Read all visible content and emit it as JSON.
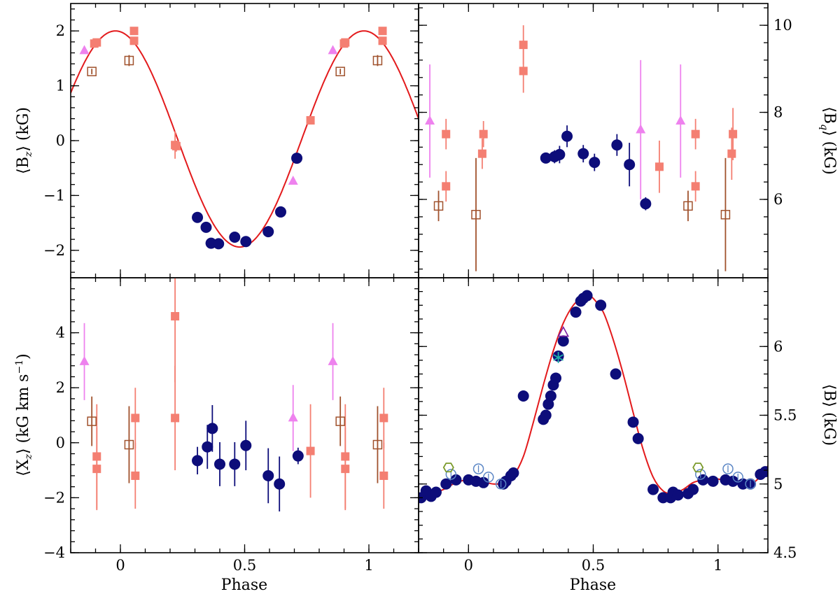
{
  "colors": {
    "fit_line": "#e31a1c",
    "filled_circle": "#0d0d7a",
    "filled_square": "#f47f72",
    "open_square": "#a0522d",
    "triangle": "#ee82ee",
    "open_circle": "#5b86c5",
    "hexagon": "#7a9a2a",
    "open_triangle": "#7b1fa2",
    "star": "#20b2aa"
  },
  "chart_data": [
    {
      "type": "scatter",
      "panel": "top-left",
      "xlabel": "",
      "ylabel": "⟨B_z⟩ (kG)",
      "ylabel_main": "⟨B",
      "ylabel_sub": "z",
      "ylabel_tail": "⟩ (kG)",
      "xlim": [
        -0.2,
        1.2
      ],
      "ylim": [
        -2.5,
        2.5
      ],
      "xticks": [
        0,
        0.5,
        1
      ],
      "xtick_labels": [
        "",
        "",
        ""
      ],
      "yticks": [
        -2,
        -1,
        0,
        1,
        2
      ],
      "ytick_labels": [
        "−2",
        "−1",
        "0",
        "1",
        "2"
      ],
      "fit": {
        "kind": "sine",
        "mean": 0.03,
        "amp": 1.97,
        "phase_max": -0.02
      },
      "series": [
        {
          "name": "filled circles",
          "marker": "filled_circle",
          "points": [
            [
              0.31,
              -1.4,
              0.05
            ],
            [
              0.345,
              -1.58,
              0.05
            ],
            [
              0.365,
              -1.87,
              0.05
            ],
            [
              0.395,
              -1.88,
              0.05
            ],
            [
              0.46,
              -1.76,
              0.05
            ],
            [
              0.505,
              -1.84,
              0.05
            ],
            [
              0.595,
              -1.66,
              0.1
            ],
            [
              0.645,
              -1.3,
              0.05
            ],
            [
              0.71,
              -0.32,
              0.05
            ]
          ]
        },
        {
          "name": "filled squares",
          "marker": "filled_square",
          "points": [
            [
              -0.105,
              1.77,
              0.05
            ],
            [
              -0.095,
              1.79,
              0.05
            ],
            [
              0.055,
              2.0,
              0.05
            ],
            [
              0.055,
              1.82,
              0.05
            ],
            [
              0.22,
              -0.08,
              0.25
            ],
            [
              0.225,
              -0.1,
              0.1
            ],
            [
              0.765,
              0.37,
              0.05
            ],
            [
              0.9,
              1.77,
              0.05
            ],
            [
              0.905,
              1.79,
              0.05
            ],
            [
              1.055,
              2.0,
              0.05
            ],
            [
              1.055,
              1.82,
              0.05
            ]
          ]
        },
        {
          "name": "open squares",
          "marker": "open_square",
          "points": [
            [
              -0.115,
              1.26,
              0.05
            ],
            [
              0.035,
              1.46,
              0.1
            ],
            [
              0.885,
              1.26,
              0.05
            ],
            [
              1.035,
              1.46,
              0.1
            ]
          ]
        },
        {
          "name": "triangles",
          "marker": "triangle",
          "points": [
            [
              -0.145,
              1.64,
              0.05
            ],
            [
              0.695,
              -0.74,
              0.05
            ],
            [
              0.855,
              1.64,
              0.05
            ]
          ]
        }
      ]
    },
    {
      "type": "scatter",
      "panel": "top-right",
      "xlabel": "",
      "ylabel": "⟨B_q⟩ (kG)",
      "ylabel_main": "⟨B",
      "ylabel_sub": "q",
      "ylabel_tail": "⟩ (kG)",
      "xlim": [
        -0.2,
        1.2
      ],
      "ylim": [
        4.2,
        10.5
      ],
      "xticks": [
        0,
        0.5,
        1
      ],
      "xtick_labels": [
        "",
        "",
        ""
      ],
      "yticks": [
        6,
        8,
        10
      ],
      "ytick_labels": [
        "6",
        "8",
        "10"
      ],
      "series": [
        {
          "name": "filled circles",
          "marker": "filled_circle",
          "points": [
            [
              0.31,
              6.95,
              0.12
            ],
            [
              0.345,
              6.98,
              0.15
            ],
            [
              0.365,
              7.03,
              0.2
            ],
            [
              0.395,
              7.45,
              0.25
            ],
            [
              0.46,
              7.05,
              0.2
            ],
            [
              0.505,
              6.85,
              0.2
            ],
            [
              0.595,
              7.25,
              0.25
            ],
            [
              0.645,
              6.8,
              0.5
            ],
            [
              0.71,
              5.9,
              0.15
            ]
          ]
        },
        {
          "name": "filled squares",
          "marker": "filled_square",
          "points": [
            [
              -0.09,
              7.5,
              0.35
            ],
            [
              -0.09,
              6.3,
              0.35
            ],
            [
              0.06,
              7.5,
              0.3
            ],
            [
              0.055,
              7.05,
              0.35
            ],
            [
              0.22,
              9.55,
              0.45
            ],
            [
              0.22,
              8.95,
              0.5
            ],
            [
              0.765,
              6.75,
              0.6
            ],
            [
              0.91,
              7.5,
              0.35
            ],
            [
              0.91,
              6.3,
              0.35
            ],
            [
              1.06,
              7.5,
              0.6
            ],
            [
              1.055,
              7.05,
              0.6
            ]
          ]
        },
        {
          "name": "open squares",
          "marker": "open_square",
          "points": [
            [
              -0.12,
              5.85,
              0.35
            ],
            [
              0.03,
              5.65,
              1.3
            ],
            [
              0.88,
              5.85,
              0.35
            ],
            [
              1.03,
              5.65,
              1.3
            ]
          ]
        },
        {
          "name": "triangles",
          "marker": "triangle",
          "points": [
            [
              -0.155,
              7.8,
              1.3
            ],
            [
              0.69,
              7.6,
              1.6
            ],
            [
              0.85,
              7.8,
              1.3
            ]
          ]
        }
      ]
    },
    {
      "type": "scatter",
      "panel": "bottom-left",
      "xlabel": "Phase",
      "ylabel": "⟨X_z⟩ (kG km s⁻¹)",
      "ylabel_main": "⟨X",
      "ylabel_sub": "z",
      "ylabel_tail": "⟩ (kG km s",
      "ylabel_sup": "−1",
      "ylabel_end": ")",
      "xlim": [
        -0.2,
        1.2
      ],
      "ylim": [
        -4,
        6
      ],
      "xticks": [
        0,
        0.5,
        1
      ],
      "xtick_labels": [
        "0",
        "0.5",
        "1"
      ],
      "yticks": [
        -4,
        -2,
        0,
        2,
        4
      ],
      "ytick_labels": [
        "−4",
        "−2",
        "0",
        "2",
        "4"
      ],
      "series": [
        {
          "name": "filled circles",
          "marker": "filled_circle",
          "points": [
            [
              0.31,
              -0.65,
              0.5
            ],
            [
              0.35,
              -0.15,
              0.8
            ],
            [
              0.37,
              0.52,
              0.85
            ],
            [
              0.4,
              -0.78,
              0.8
            ],
            [
              0.46,
              -0.78,
              0.8
            ],
            [
              0.505,
              -0.1,
              0.9
            ],
            [
              0.595,
              -1.2,
              1.0
            ],
            [
              0.64,
              -1.5,
              1.0
            ],
            [
              0.715,
              -0.48,
              0.3
            ]
          ]
        },
        {
          "name": "filled squares",
          "marker": "filled_square",
          "points": [
            [
              -0.095,
              -0.5,
              1.9
            ],
            [
              -0.095,
              -0.95,
              1.5
            ],
            [
              0.06,
              0.9,
              1.1
            ],
            [
              0.06,
              -1.2,
              1.2
            ],
            [
              0.22,
              4.6,
              2.4
            ],
            [
              0.22,
              0.9,
              1.9
            ],
            [
              0.765,
              -0.3,
              1.7
            ],
            [
              0.905,
              -0.5,
              1.9
            ],
            [
              0.905,
              -0.95,
              1.5
            ],
            [
              1.06,
              0.9,
              1.1
            ],
            [
              1.06,
              -1.2,
              1.2
            ]
          ]
        },
        {
          "name": "open squares",
          "marker": "open_square",
          "points": [
            [
              -0.115,
              0.78,
              0.9
            ],
            [
              0.035,
              -0.07,
              1.4
            ],
            [
              0.885,
              0.78,
              0.9
            ],
            [
              1.035,
              -0.07,
              1.4
            ]
          ]
        },
        {
          "name": "triangles",
          "marker": "triangle",
          "points": [
            [
              -0.145,
              2.95,
              1.4
            ],
            [
              0.695,
              0.9,
              1.2
            ],
            [
              0.855,
              2.95,
              1.4
            ]
          ]
        }
      ]
    },
    {
      "type": "scatter",
      "panel": "bottom-right",
      "xlabel": "Phase",
      "ylabel": "⟨B⟩ (kG)",
      "ylabel_main": "⟨B",
      "ylabel_sub": "",
      "ylabel_tail": "⟩ (kG)",
      "xlim": [
        -0.2,
        1.2
      ],
      "ylim": [
        4.5,
        6.5
      ],
      "xticks": [
        0,
        0.5,
        1
      ],
      "xtick_labels": [
        "0",
        "0.5",
        "1"
      ],
      "yticks": [
        4.5,
        5,
        5.5,
        6
      ],
      "ytick_labels": [
        "4.5",
        "5",
        "5.5",
        "6"
      ],
      "fit": {
        "kind": "profile",
        "points": [
          [
            -0.2,
            4.93
          ],
          [
            -0.15,
            4.93
          ],
          [
            -0.1,
            4.96
          ],
          [
            -0.05,
            5.01
          ],
          [
            0.0,
            5.03
          ],
          [
            0.05,
            5.02
          ],
          [
            0.1,
            5.0
          ],
          [
            0.14,
            5.01
          ],
          [
            0.18,
            5.06
          ],
          [
            0.22,
            5.2
          ],
          [
            0.26,
            5.45
          ],
          [
            0.3,
            5.72
          ],
          [
            0.34,
            5.97
          ],
          [
            0.38,
            6.17
          ],
          [
            0.42,
            6.3
          ],
          [
            0.46,
            6.36
          ],
          [
            0.48,
            6.37
          ],
          [
            0.5,
            6.35
          ],
          [
            0.54,
            6.25
          ],
          [
            0.58,
            6.05
          ],
          [
            0.62,
            5.8
          ],
          [
            0.66,
            5.52
          ],
          [
            0.7,
            5.25
          ],
          [
            0.74,
            5.05
          ],
          [
            0.78,
            4.95
          ],
          [
            0.82,
            4.93
          ],
          [
            0.86,
            4.96
          ],
          [
            0.9,
            5.01
          ],
          [
            0.94,
            5.03
          ],
          [
            0.98,
            5.04
          ],
          [
            1.02,
            5.03
          ],
          [
            1.06,
            5.02
          ],
          [
            1.1,
            5.0
          ],
          [
            1.15,
            5.02
          ],
          [
            1.2,
            5.13
          ]
        ]
      },
      "series": [
        {
          "name": "filled circles",
          "marker": "filled_circle",
          "points": [
            [
              -0.19,
              4.9
            ],
            [
              -0.17,
              4.95
            ],
            [
              -0.15,
              4.91
            ],
            [
              -0.13,
              4.94
            ],
            [
              -0.09,
              5.0
            ],
            [
              -0.05,
              5.03
            ],
            [
              0.0,
              5.03
            ],
            [
              0.03,
              5.02
            ],
            [
              0.06,
              5.01
            ],
            [
              0.14,
              5.0
            ],
            [
              0.15,
              5.02
            ],
            [
              0.17,
              5.06
            ],
            [
              0.18,
              5.08
            ],
            [
              0.22,
              5.64
            ],
            [
              0.3,
              5.47
            ],
            [
              0.31,
              5.5
            ],
            [
              0.32,
              5.58
            ],
            [
              0.33,
              5.64
            ],
            [
              0.34,
              5.72
            ],
            [
              0.35,
              5.77
            ],
            [
              0.36,
              5.93
            ],
            [
              0.38,
              6.04
            ],
            [
              0.43,
              6.25
            ],
            [
              0.45,
              6.33
            ],
            [
              0.46,
              6.35
            ],
            [
              0.475,
              6.37
            ],
            [
              0.53,
              6.3
            ],
            [
              0.59,
              5.8
            ],
            [
              0.66,
              5.45
            ],
            [
              0.68,
              5.33
            ],
            [
              0.74,
              4.96
            ],
            [
              0.78,
              4.9
            ],
            [
              0.81,
              4.9
            ],
            [
              0.82,
              4.94
            ],
            [
              0.84,
              4.92
            ],
            [
              0.88,
              4.93
            ],
            [
              0.9,
              4.96
            ],
            [
              0.94,
              5.03
            ],
            [
              0.98,
              5.02
            ],
            [
              1.03,
              5.03
            ],
            [
              1.06,
              5.02
            ],
            [
              1.1,
              5.0
            ],
            [
              1.13,
              5.0
            ],
            [
              1.17,
              5.07
            ],
            [
              1.19,
              5.09
            ]
          ]
        },
        {
          "name": "open circles",
          "marker": "open_circle",
          "points": [
            [
              -0.07,
              5.07
            ],
            [
              0.04,
              5.11
            ],
            [
              0.08,
              5.05
            ],
            [
              0.13,
              5.0
            ],
            [
              0.93,
              5.07
            ],
            [
              1.04,
              5.11
            ],
            [
              1.08,
              5.05
            ],
            [
              1.13,
              5.0
            ]
          ]
        },
        {
          "name": "hexagons",
          "marker": "hexagon",
          "points": [
            [
              -0.08,
              5.12
            ],
            [
              0.92,
              5.12
            ]
          ]
        },
        {
          "name": "open triangle",
          "marker": "open_triangle",
          "points": [
            [
              0.38,
              6.1
            ]
          ]
        },
        {
          "name": "star",
          "marker": "star",
          "points": [
            [
              0.36,
              5.92
            ]
          ]
        }
      ]
    }
  ]
}
